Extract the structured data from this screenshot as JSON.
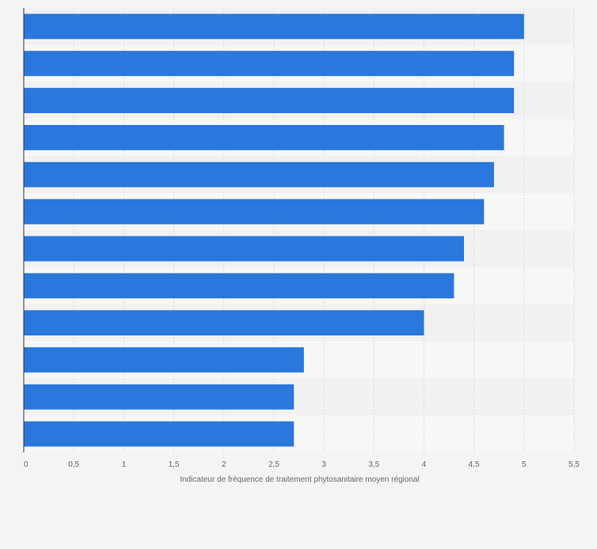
{
  "chart_data": {
    "type": "bar",
    "orientation": "horizontal",
    "categories": [
      "",
      "",
      "",
      "",
      "",
      "",
      "",
      "",
      "",
      "",
      "",
      ""
    ],
    "values": [
      5.0,
      4.9,
      4.9,
      4.8,
      4.7,
      4.6,
      4.4,
      4.3,
      4.0,
      2.8,
      2.7,
      2.7
    ],
    "xlabel": "Indicateur de fréquence de traitement phytosanitaire moyen régional",
    "ylabel": "",
    "xlim": [
      0,
      5.5
    ],
    "xticks": [
      "0",
      "0,5",
      "1",
      "1,5",
      "2",
      "2,5",
      "3",
      "3,5",
      "4",
      "4,5",
      "5",
      "5,5"
    ],
    "grid": true,
    "legend": "none",
    "colors": {
      "bar": "#2a77dd",
      "row_light": "#f7f7f7",
      "row_dark": "#f1f1f1",
      "gridline": "#d9d9d9",
      "axis": "#333333",
      "tick_text": "#666666"
    }
  }
}
